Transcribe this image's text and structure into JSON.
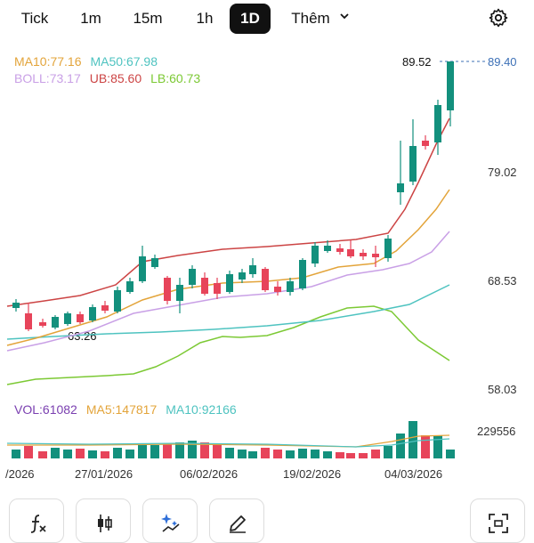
{
  "timeframes": {
    "tabs": [
      "Tick",
      "1m",
      "15m",
      "1h",
      "1D"
    ],
    "active": "1D",
    "more_label": "Thêm"
  },
  "indicators": {
    "ma10": "MA10:77.16",
    "ma50": "MA50:67.98",
    "boll": "BOLL:73.17",
    "ub": "UB:85.60",
    "lb": "LB:60.73"
  },
  "price_axis": {
    "labels": [
      "89.40",
      "79.02",
      "68.53",
      "58.03"
    ],
    "last_price": "89.40",
    "high_marker": "89.52",
    "low_marker": "63.26"
  },
  "volume": {
    "vol": "VOL:61082",
    "ma5": "MA5:147817",
    "ma10": "MA10:92166",
    "axis_label": "229556"
  },
  "date_labels": [
    "/2026",
    "27/01/2026",
    "06/02/2026",
    "19/02/2026",
    "04/03/2026"
  ],
  "colors": {
    "up": "#13907d",
    "down": "#e7445a",
    "ma10": "#e3a43a",
    "ma50": "#4ec3c0",
    "boll": "#c9a0e6",
    "ub": "#cc4444",
    "lb": "#7cc934",
    "vol_label": "#7a3fb0",
    "last_price": "#3b6fb6"
  },
  "toolbar": [
    "function-icon",
    "candlestick-icon",
    "sparkle-chart-icon",
    "pencil-icon",
    "fullscreen-icon"
  ]
}
